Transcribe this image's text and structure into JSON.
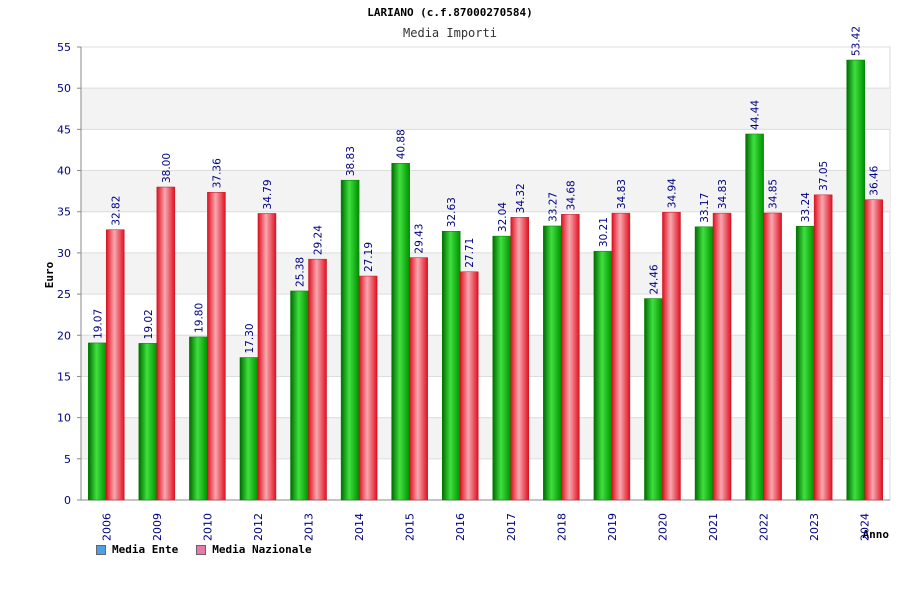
{
  "header": {
    "title": "LARIANO (c.f.87000270584)",
    "subtitle": "Media Importi"
  },
  "chart_data": {
    "type": "bar",
    "title": "LARIANO (c.f.87000270584)",
    "subtitle": "Media Importi",
    "xlabel": "Anno",
    "ylabel": "Euro",
    "ylim": [
      0,
      55
    ],
    "yticks": [
      0,
      5,
      10,
      15,
      20,
      25,
      30,
      35,
      40,
      45,
      50,
      55
    ],
    "grid": true,
    "legend_position": "bottom-left",
    "categories": [
      "2006",
      "2009",
      "2010",
      "2012",
      "2013",
      "2014",
      "2015",
      "2016",
      "2017",
      "2018",
      "2019",
      "2020",
      "2021",
      "2022",
      "2023",
      "2024"
    ],
    "series": [
      {
        "name": "Media Ente",
        "color": "#00aa00",
        "legend_color": "#4f9fe8",
        "values": [
          19.07,
          19.02,
          19.8,
          17.3,
          25.38,
          38.83,
          40.88,
          32.63,
          32.04,
          33.27,
          30.21,
          24.46,
          33.17,
          44.44,
          33.24,
          53.42
        ]
      },
      {
        "name": "Media Nazionale",
        "color": "#e8182a",
        "legend_color": "#e77aa8",
        "values": [
          32.82,
          38.0,
          37.36,
          34.79,
          29.24,
          27.19,
          29.43,
          27.71,
          34.32,
          34.68,
          34.83,
          34.94,
          34.83,
          34.85,
          37.05,
          36.46
        ]
      }
    ]
  }
}
